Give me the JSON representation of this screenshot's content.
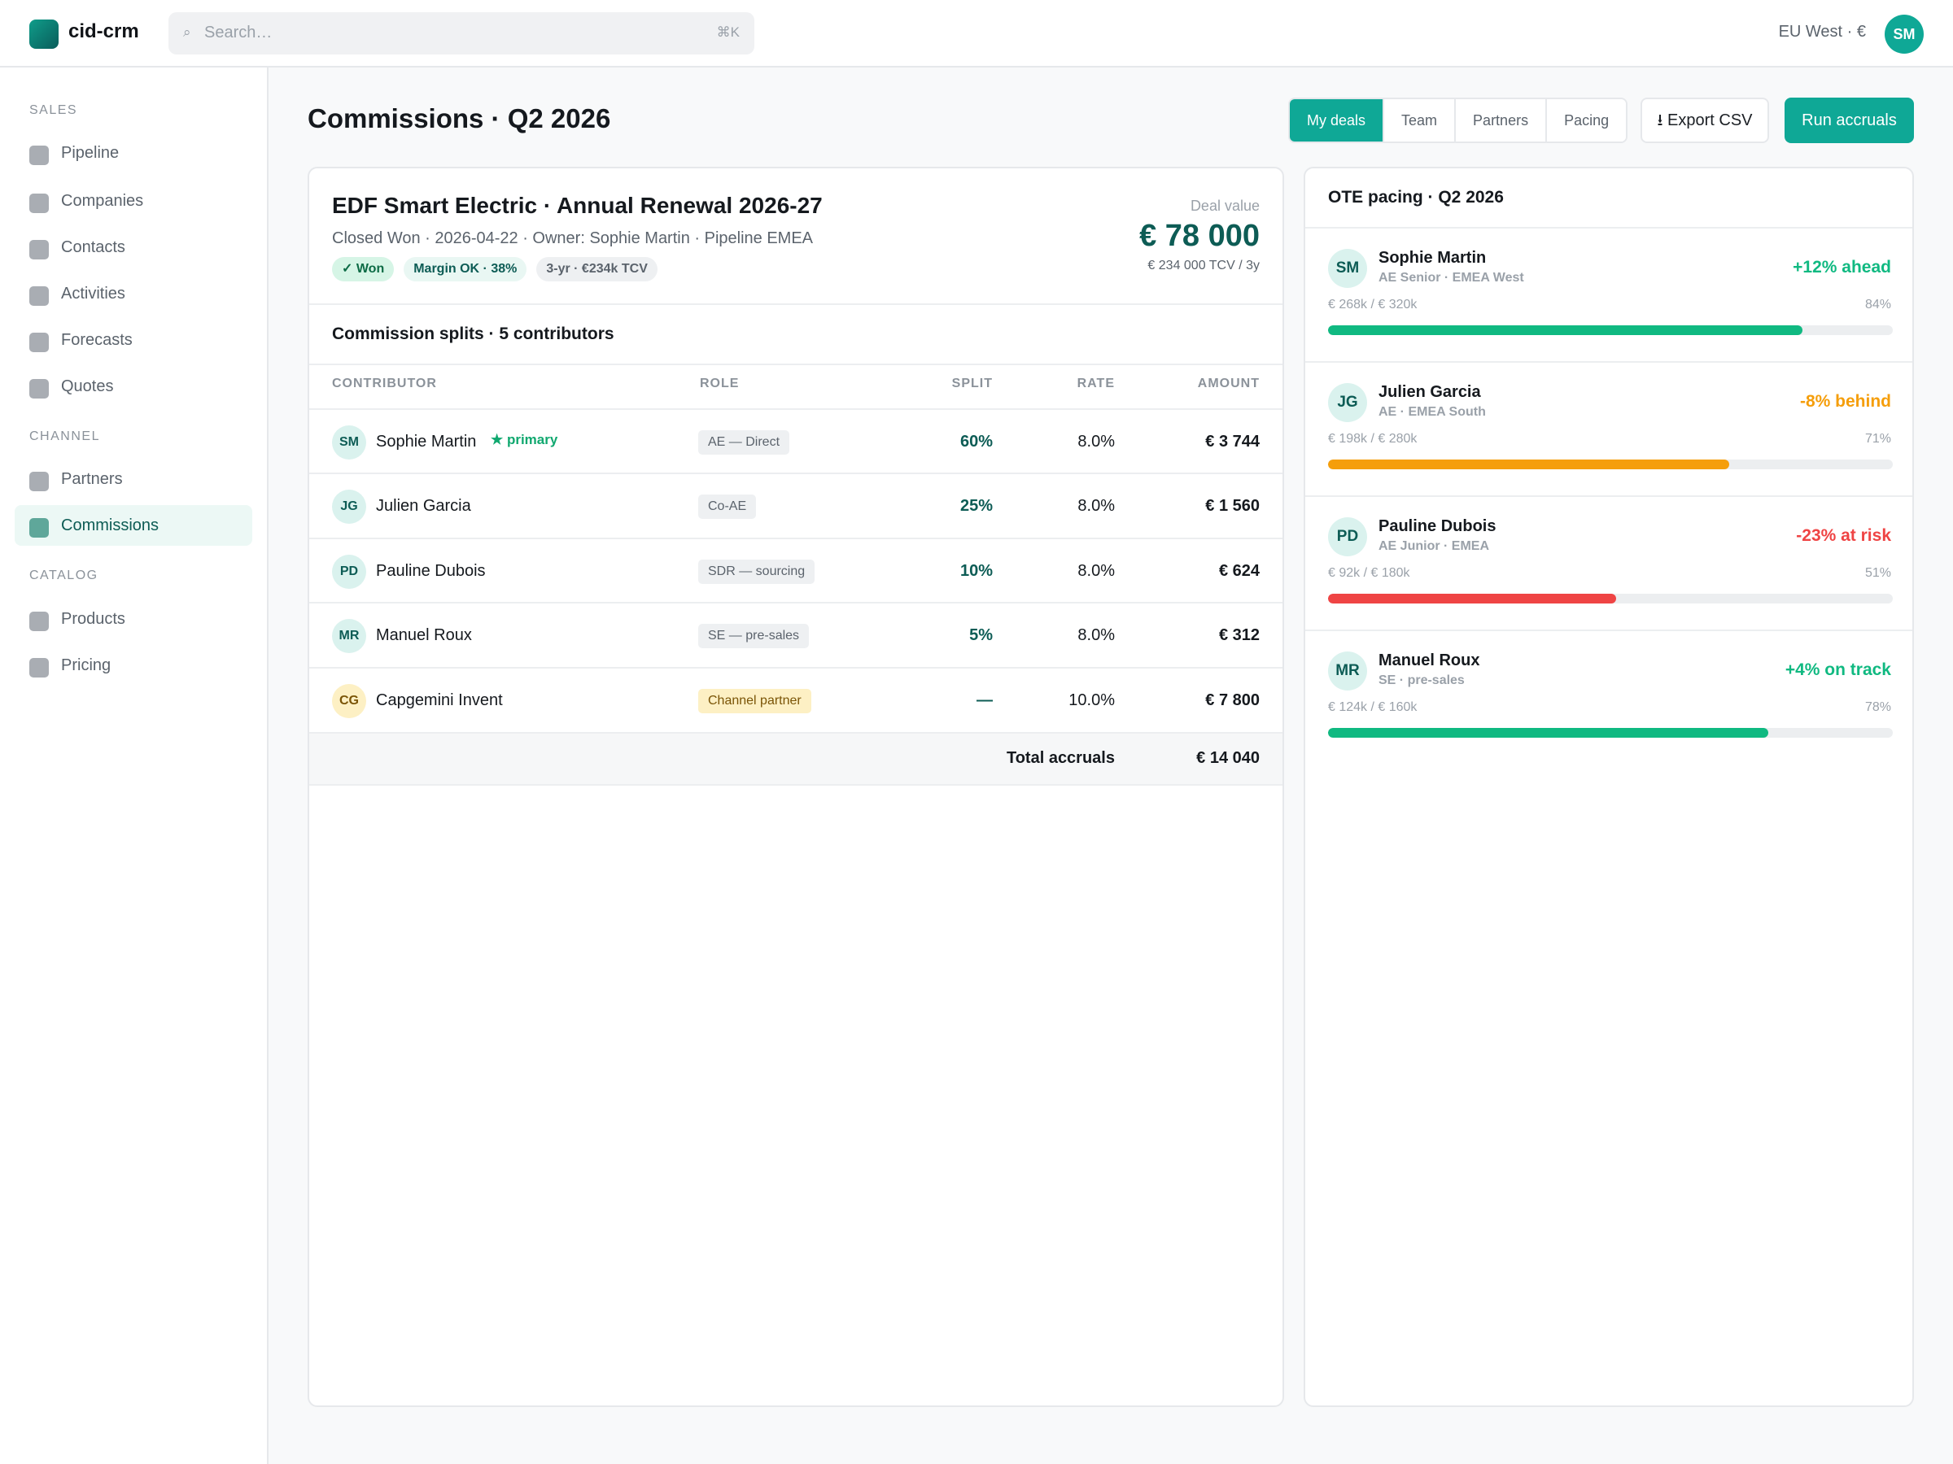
{
  "app": {
    "name": "cid-crm"
  },
  "search": {
    "placeholder": "Search…",
    "shortcut": "⌘K"
  },
  "header": {
    "region": "EU West · €",
    "user_initials": "SM"
  },
  "sidebar": {
    "sections": [
      {
        "label": "SALES",
        "items": [
          {
            "label": "Pipeline"
          },
          {
            "label": "Companies"
          },
          {
            "label": "Contacts"
          },
          {
            "label": "Activities"
          },
          {
            "label": "Forecasts"
          },
          {
            "label": "Quotes"
          }
        ]
      },
      {
        "label": "CHANNEL",
        "items": [
          {
            "label": "Partners"
          },
          {
            "label": "Commissions",
            "active": true
          }
        ]
      },
      {
        "label": "CATALOG",
        "items": [
          {
            "label": "Products"
          },
          {
            "label": "Pricing"
          }
        ]
      }
    ]
  },
  "page": {
    "title": "Commissions · Q2 2026",
    "tabs": [
      {
        "label": "My deals",
        "active": true
      },
      {
        "label": "Team"
      },
      {
        "label": "Partners"
      },
      {
        "label": "Pacing"
      }
    ],
    "export_label": "⭳ Export CSV",
    "run_label": "Run accruals"
  },
  "deal": {
    "title": "EDF Smart Electric · Annual Renewal 2026-27",
    "meta": "Closed Won · 2026-04-22 · Owner: Sophie Martin · Pipeline EMEA",
    "badges": {
      "won": "✓ Won",
      "margin": "Margin OK · 38%",
      "tcv": "3-yr · €234k TCV"
    },
    "value_label": "Deal value",
    "value": "€ 78 000",
    "value_sub": "€ 234 000 TCV / 3y"
  },
  "splits": {
    "title": "Commission splits · 5 contributors",
    "columns": {
      "contributor": "CONTRIBUTOR",
      "role": "ROLE",
      "split": "SPLIT",
      "rate": "RATE",
      "amount": "AMOUNT"
    },
    "rows": [
      {
        "initials": "SM",
        "name": "Sophie Martin",
        "tag": "★ primary",
        "role": "AE — Direct",
        "split": "60%",
        "rate": "8.0%",
        "amount": "€ 3 744"
      },
      {
        "initials": "JG",
        "name": "Julien Garcia",
        "role": "Co-AE",
        "split": "25%",
        "rate": "8.0%",
        "amount": "€ 1 560"
      },
      {
        "initials": "PD",
        "name": "Pauline Dubois",
        "role": "SDR — sourcing",
        "split": "10%",
        "rate": "8.0%",
        "amount": "€ 624"
      },
      {
        "initials": "MR",
        "name": "Manuel Roux",
        "role": "SE — pre-sales",
        "split": "5%",
        "rate": "8.0%",
        "amount": "€ 312"
      },
      {
        "initials": "CG",
        "name": "Capgemini Invent",
        "role": "Channel partner",
        "split": "—",
        "rate": "10.0%",
        "amount": "€ 7 800"
      }
    ],
    "total_label": "Total accruals",
    "total_value": "€ 14 040"
  },
  "pacing": {
    "title": "OTE pacing · Q2 2026",
    "items": [
      {
        "initials": "SM",
        "name": "Sophie Martin",
        "role": "AE Senior · EMEA West",
        "status": "+12% ahead",
        "status_color": "#10b981",
        "attainment": "€ 268k / € 320k",
        "pct": "84%",
        "progress": 0.84,
        "bar_color": "#10b981"
      },
      {
        "initials": "JG",
        "name": "Julien Garcia",
        "role": "AE · EMEA South",
        "status": "-8% behind",
        "status_color": "#f59e0b",
        "attainment": "€ 198k / € 280k",
        "pct": "71%",
        "progress": 0.71,
        "bar_color": "#f59e0b"
      },
      {
        "initials": "PD",
        "name": "Pauline Dubois",
        "role": "AE Junior · EMEA",
        "status": "-23% at risk",
        "status_color": "#ef4444",
        "attainment": "€ 92k / € 180k",
        "pct": "51%",
        "progress": 0.51,
        "bar_color": "#ef4444"
      },
      {
        "initials": "MR",
        "name": "Manuel Roux",
        "role": "SE · pre-sales",
        "status": "+4% on track",
        "status_color": "#10b981",
        "attainment": "€ 124k / € 160k",
        "pct": "78%",
        "progress": 0.78,
        "bar_color": "#10b981"
      }
    ]
  }
}
